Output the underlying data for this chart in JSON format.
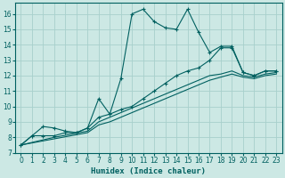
{
  "xlabel": "Humidex (Indice chaleur)",
  "bg_color": "#cce8e4",
  "grid_color": "#a8d0cc",
  "line_color": "#006060",
  "xlim": [
    -0.5,
    23.5
  ],
  "ylim": [
    7.0,
    16.7
  ],
  "yticks": [
    7,
    8,
    9,
    10,
    11,
    12,
    13,
    14,
    15,
    16
  ],
  "xticks": [
    0,
    1,
    2,
    3,
    4,
    5,
    6,
    7,
    8,
    9,
    10,
    11,
    12,
    13,
    14,
    15,
    16,
    17,
    18,
    19,
    20,
    21,
    22,
    23
  ],
  "line1_x": [
    0,
    1,
    2,
    3,
    4,
    5,
    6,
    7,
    8,
    9,
    10,
    11,
    12,
    13,
    14,
    15,
    16,
    17,
    18,
    19,
    20,
    21,
    22,
    23
  ],
  "line1_y": [
    7.5,
    8.1,
    8.1,
    8.1,
    8.3,
    8.3,
    8.6,
    10.5,
    9.5,
    11.8,
    16.0,
    16.3,
    15.5,
    15.1,
    15.0,
    16.3,
    14.8,
    13.5,
    13.9,
    13.9,
    12.2,
    12.0,
    12.3,
    12.3
  ],
  "line2_x": [
    0,
    1,
    2,
    3,
    4,
    5,
    6,
    7,
    8,
    9,
    10,
    11,
    12,
    13,
    14,
    15,
    16,
    17,
    18,
    19,
    20,
    21,
    22,
    23
  ],
  "line2_y": [
    7.5,
    8.1,
    8.7,
    8.6,
    8.4,
    8.3,
    8.6,
    9.3,
    9.5,
    9.8,
    10.0,
    10.5,
    11.0,
    11.5,
    12.0,
    12.3,
    12.5,
    13.0,
    13.8,
    13.8,
    12.2,
    12.0,
    12.3,
    12.3
  ],
  "line3_x": [
    0,
    3,
    6,
    7,
    8,
    9,
    10,
    11,
    12,
    13,
    14,
    15,
    16,
    17,
    18,
    19,
    20,
    21,
    22,
    23
  ],
  "line3_y": [
    7.5,
    8.0,
    8.4,
    9.0,
    9.3,
    9.6,
    9.9,
    10.2,
    10.5,
    10.8,
    11.1,
    11.4,
    11.7,
    12.0,
    12.1,
    12.3,
    12.0,
    11.9,
    12.1,
    12.2
  ],
  "line4_x": [
    0,
    3,
    6,
    7,
    8,
    9,
    10,
    11,
    12,
    13,
    14,
    15,
    16,
    17,
    18,
    19,
    20,
    21,
    22,
    23
  ],
  "line4_y": [
    7.5,
    7.9,
    8.3,
    8.8,
    9.0,
    9.3,
    9.6,
    9.9,
    10.2,
    10.5,
    10.8,
    11.1,
    11.4,
    11.7,
    11.9,
    12.1,
    11.9,
    11.8,
    12.0,
    12.1
  ]
}
